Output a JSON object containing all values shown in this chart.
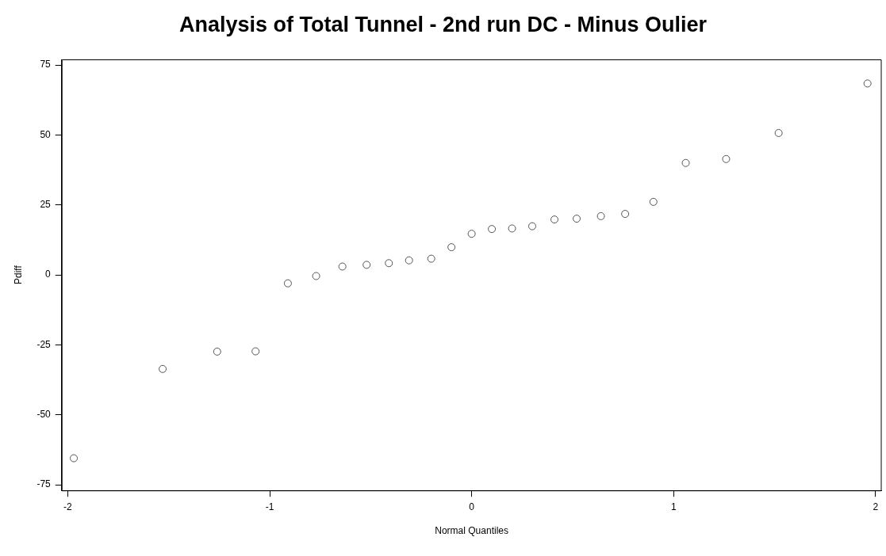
{
  "chart_data": {
    "type": "scatter",
    "title": "Analysis of Total Tunnel - 2nd run DC - Minus Oulier",
    "xlabel": "Normal Quantiles",
    "ylabel": "Pdiff",
    "x": [
      -1.97,
      -1.53,
      -1.26,
      -1.07,
      -0.91,
      -0.77,
      -0.64,
      -0.52,
      -0.41,
      -0.31,
      -0.2,
      -0.1,
      0,
      0.1,
      0.2,
      0.3,
      0.41,
      0.52,
      0.64,
      0.76,
      0.9,
      1.06,
      1.26,
      1.52,
      1.96
    ],
    "values": [
      -65.5,
      -33.6,
      -27.4,
      -27.3,
      -3,
      -0.4,
      3,
      3.6,
      4.2,
      5.2,
      5.8,
      9.9,
      14.7,
      16.4,
      16.6,
      17.4,
      19.8,
      20.1,
      21,
      21.8,
      26.1,
      40,
      41.4,
      50.7,
      68.4
    ],
    "color": "#555555",
    "marker": "circle",
    "grid": false,
    "legend": false,
    "xlim": [
      -2.03,
      2.03
    ],
    "ylim": [
      -77,
      77
    ],
    "xticks": [
      -2,
      -1,
      0,
      1,
      2
    ],
    "yticks": [
      -75,
      -50,
      -25,
      0,
      25,
      50,
      75
    ]
  }
}
